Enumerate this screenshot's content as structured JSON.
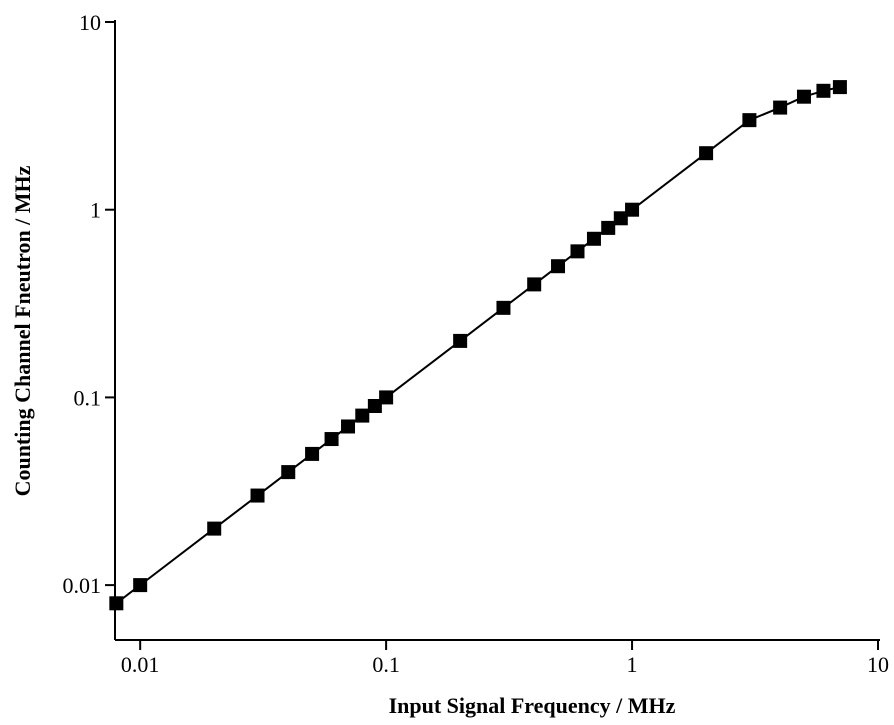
{
  "chart_data": {
    "type": "scatter-line",
    "x_label": "Input Signal Frequency / MHz",
    "y_label": "Counting Channel Fneutron / MHz",
    "xscale": "log",
    "yscale": "log",
    "xlim": [
      0.0079,
      10
    ],
    "ylim": [
      0.0051,
      10
    ],
    "xticks": [
      0.01,
      0.1,
      1,
      10
    ],
    "yticks": [
      0.01,
      0.1,
      1,
      10
    ],
    "color": "#000000",
    "x": [
      0.008,
      0.01,
      0.02,
      0.03,
      0.04,
      0.05,
      0.06,
      0.07,
      0.08,
      0.09,
      0.1,
      0.2,
      0.3,
      0.4,
      0.5,
      0.6,
      0.7,
      0.8,
      0.9,
      1,
      2,
      3,
      4,
      5,
      6,
      7
    ],
    "values": [
      0.008,
      0.01,
      0.02,
      0.03,
      0.04,
      0.05,
      0.06,
      0.07,
      0.08,
      0.09,
      0.1,
      0.2,
      0.3,
      0.4,
      0.5,
      0.6,
      0.7,
      0.8,
      0.9,
      1,
      2,
      3,
      3.5,
      4,
      4.3,
      4.5
    ]
  }
}
